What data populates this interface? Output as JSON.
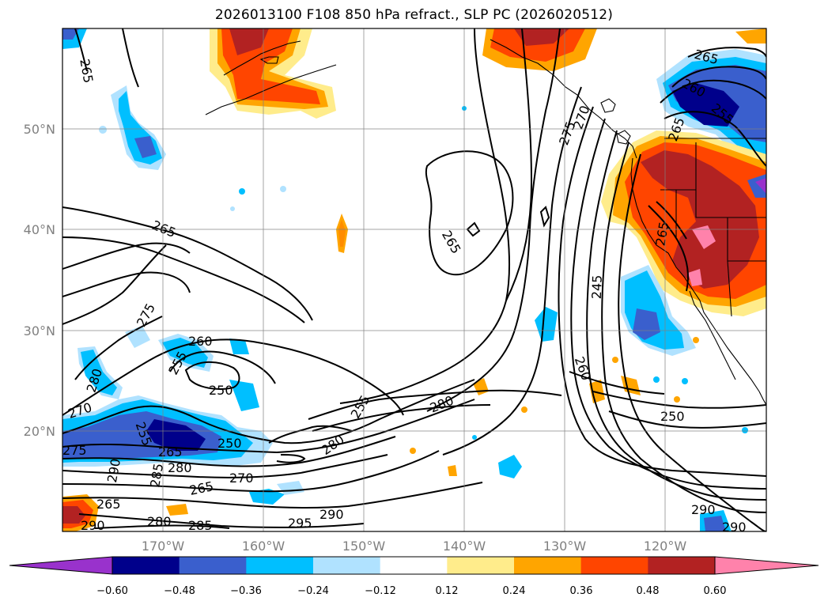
{
  "title": "2026013100 F108 850 hPa refract., SLP PC (2026020512)",
  "latitude_labels": [
    "50°N",
    "40°N",
    "30°N",
    "20°N"
  ],
  "longitude_labels": [
    "170°W",
    "160°W",
    "150°W",
    "140°W",
    "130°W",
    "120°W"
  ],
  "colorbar": {
    "ticks": [
      "−0.60",
      "−0.48",
      "−0.36",
      "−0.24",
      "−0.12",
      "0.12",
      "0.24",
      "0.36",
      "0.48",
      "0.60"
    ],
    "colors": [
      "#9932cc",
      "#00008b",
      "#3a5fcd",
      "#00bfff",
      "#b0e2ff",
      "#ffffff",
      "#ffec8b",
      "#ffa500",
      "#ff4500",
      "#b22222",
      "#ff82ab"
    ]
  },
  "contour_labels": [
    "265",
    "265",
    "265",
    "275",
    "260",
    "255",
    "250",
    "280",
    "270",
    "255",
    "265",
    "250",
    "275",
    "280",
    "290",
    "285",
    "270",
    "265",
    "280",
    "285",
    "265",
    "290",
    "295",
    "290",
    "255",
    "280",
    "280",
    "265",
    "275",
    "270",
    "245",
    "260",
    "250",
    "290",
    "290",
    "265",
    "260",
    "255",
    "265"
  ]
}
